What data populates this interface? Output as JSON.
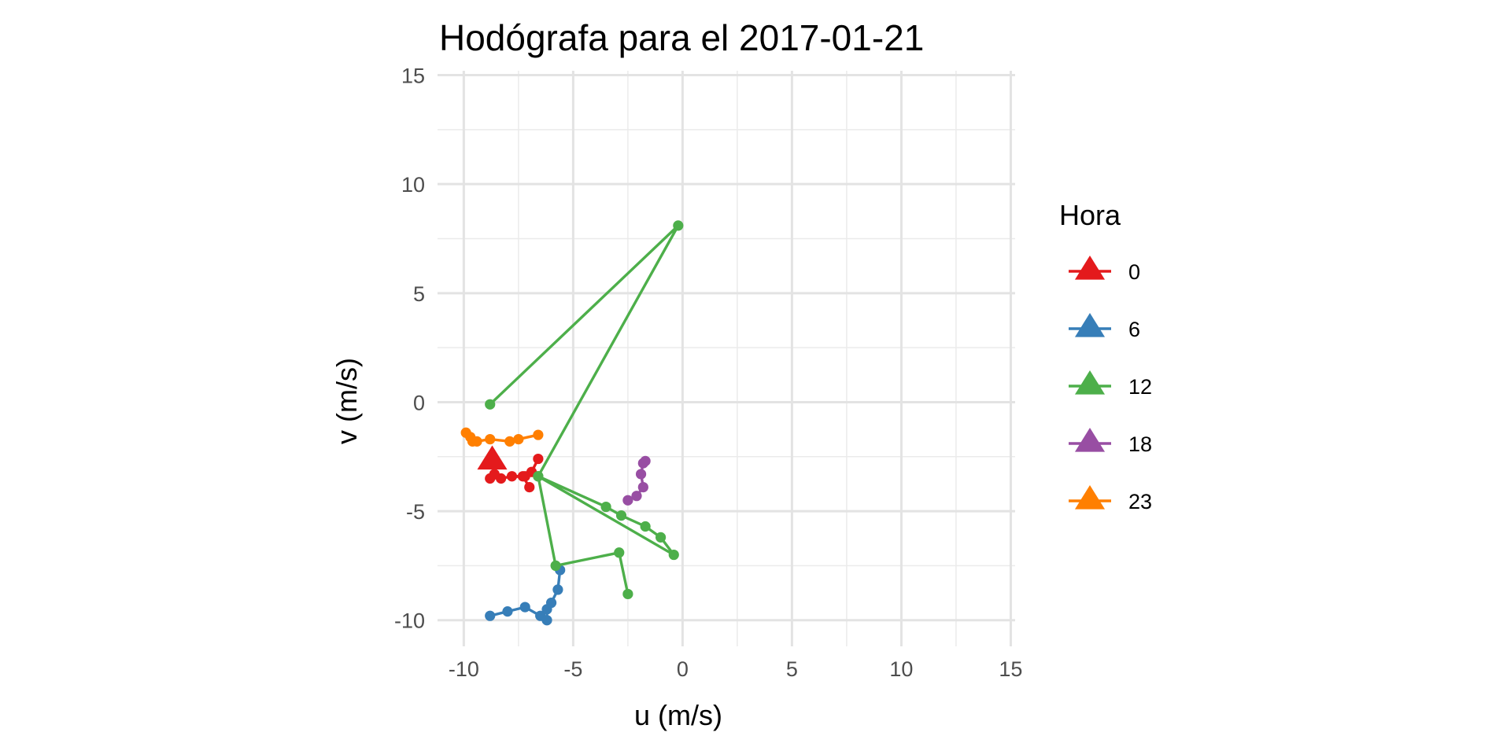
{
  "chart_data": {
    "type": "line",
    "title": "Hodógrafa para el 2017-01-21",
    "xlabel": "u (m/s)",
    "ylabel": "v (m/s)",
    "xlim": [
      -11.2,
      15.2
    ],
    "ylim": [
      -11.2,
      15.2
    ],
    "xticks": [
      -10,
      -5,
      0,
      5,
      10,
      15
    ],
    "yticks": [
      -10,
      -5,
      0,
      5,
      10,
      15
    ],
    "xtick_labels": [
      "-10",
      "-5",
      "0",
      "5",
      "10",
      "15"
    ],
    "ytick_labels": [
      "-10",
      "-5",
      "0",
      "5",
      "10",
      "15"
    ],
    "grid": true,
    "legend": {
      "title": "Hora",
      "position": "right"
    },
    "series": [
      {
        "name": "0",
        "color": "#e41a1c",
        "points": [
          [
            -6.6,
            -2.6
          ],
          [
            -6.9,
            -3.2
          ],
          [
            -7.2,
            -3.4
          ],
          [
            -7.8,
            -3.4
          ],
          [
            -8.3,
            -3.5
          ],
          [
            -8.6,
            -3.3
          ],
          [
            -8.8,
            -3.5
          ],
          [
            -7.3,
            -3.4
          ],
          [
            -7.0,
            -3.9
          ]
        ],
        "start": [
          -8.7,
          -2.6
        ]
      },
      {
        "name": "6",
        "color": "#377eb8",
        "points": [
          [
            -8.8,
            -9.8
          ],
          [
            -8.0,
            -9.6
          ],
          [
            -7.2,
            -9.4
          ],
          [
            -6.5,
            -9.8
          ],
          [
            -6.2,
            -10.0
          ],
          [
            -6.2,
            -9.5
          ],
          [
            -6.0,
            -9.2
          ],
          [
            -5.7,
            -8.6
          ],
          [
            -5.6,
            -7.7
          ]
        ],
        "start": null
      },
      {
        "name": "12",
        "color": "#4daf4a",
        "points": [
          [
            -8.8,
            -0.1
          ],
          [
            -0.2,
            8.1
          ],
          [
            -6.6,
            -3.4
          ],
          [
            -3.5,
            -4.8
          ],
          [
            -2.8,
            -5.2
          ],
          [
            -1.7,
            -5.7
          ],
          [
            -1.0,
            -6.2
          ],
          [
            -0.4,
            -7.0
          ],
          [
            -6.6,
            -3.4
          ],
          [
            -5.8,
            -7.5
          ],
          [
            -2.9,
            -6.9
          ],
          [
            -2.5,
            -8.8
          ]
        ],
        "start": null
      },
      {
        "name": "18",
        "color": "#984ea3",
        "points": [
          [
            -2.5,
            -4.5
          ],
          [
            -2.1,
            -4.3
          ],
          [
            -1.8,
            -3.9
          ],
          [
            -1.9,
            -3.3
          ],
          [
            -1.8,
            -2.8
          ],
          [
            -1.7,
            -2.7
          ]
        ],
        "start": null
      },
      {
        "name": "23",
        "color": "#ff7f00",
        "points": [
          [
            -9.9,
            -1.4
          ],
          [
            -9.7,
            -1.6
          ],
          [
            -9.6,
            -1.8
          ],
          [
            -9.4,
            -1.8
          ],
          [
            -8.8,
            -1.7
          ],
          [
            -7.9,
            -1.8
          ],
          [
            -7.5,
            -1.7
          ],
          [
            -6.6,
            -1.5
          ]
        ],
        "start": null
      }
    ]
  }
}
